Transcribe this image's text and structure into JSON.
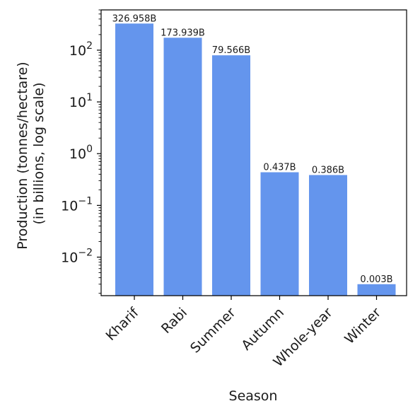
{
  "chart_data": {
    "type": "bar",
    "title": "",
    "xlabel": "Season",
    "ylabel_lines": [
      "Production (tonnes/hectare)",
      "(in billions, log scale)"
    ],
    "y_scale": "log",
    "ylim": [
      0.0018,
      600
    ],
    "categories": [
      "Kharif",
      "Rabi",
      "Summer",
      "Autumn",
      "Whole-year",
      "Winter"
    ],
    "values": [
      326.958,
      173.939,
      79.566,
      0.437,
      0.386,
      0.003
    ],
    "data_labels": [
      "326.958B",
      "173.939B",
      "79.566B",
      "0.437B",
      "0.386B",
      "0.003B"
    ],
    "y_ticks": [
      {
        "value": 0.01,
        "base": "10",
        "exp": "−2"
      },
      {
        "value": 0.1,
        "base": "10",
        "exp": "−1"
      },
      {
        "value": 1,
        "base": "10",
        "exp": "0"
      },
      {
        "value": 10,
        "base": "10",
        "exp": "1"
      },
      {
        "value": 100,
        "base": "10",
        "exp": "2"
      }
    ],
    "bar_color": "#6495ed",
    "grid": false,
    "legend": "none"
  }
}
